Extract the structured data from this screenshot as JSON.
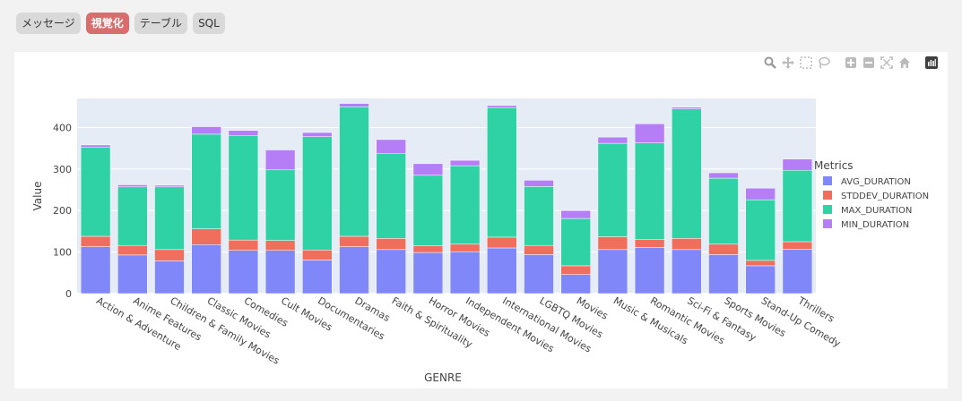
{
  "tabs": [
    {
      "label": "メッセージ",
      "active": false
    },
    {
      "label": "視覚化",
      "active": true
    },
    {
      "label": "テーブル",
      "active": false
    },
    {
      "label": "SQL",
      "active": false
    }
  ],
  "modebar": [
    "zoom-icon",
    "pan-icon",
    "box-select-icon",
    "lasso-icon",
    "zoom-in-icon",
    "zoom-out-icon",
    "autoscale-icon",
    "reset-axes-icon",
    "plotly-logo-icon"
  ],
  "colors": {
    "AVG_DURATION": "#8087f8",
    "STDDEV_DURATION": "#ef6f5c",
    "MAX_DURATION": "#2fd2a4",
    "MIN_DURATION": "#b57ef7"
  },
  "chart_data": {
    "type": "bar",
    "stacked": true,
    "xlabel": "GENRE",
    "ylabel": "Value",
    "ylim": [
      0,
      470
    ],
    "yticks": [
      0,
      100,
      200,
      300,
      400
    ],
    "legend_title": "Metrics",
    "legend_position": "right",
    "categories": [
      "Action & Adventure",
      "Anime Features",
      "Children & Family Movies",
      "Classic Movies",
      "Comedies",
      "Cult Movies",
      "Documentaries",
      "Dramas",
      "Faith & Spirituality",
      "Horror Movies",
      "Independent Movies",
      "International Movies",
      "LGBTQ Movies",
      "Movies",
      "Music & Musicals",
      "Romantic Movies",
      "Sci-Fi & Fantasy",
      "Sports Movies",
      "Stand-Up Comedy",
      "Thrillers"
    ],
    "series": [
      {
        "name": "AVG_DURATION",
        "values": [
          113,
          93,
          79,
          118,
          104,
          104,
          81,
          113,
          106,
          99,
          101,
          110,
          94,
          46,
          106,
          111,
          106,
          94,
          67,
          107
        ]
      },
      {
        "name": "STDDEV_DURATION",
        "values": [
          25,
          23,
          27,
          38,
          25,
          24,
          24,
          25,
          27,
          16,
          18,
          26,
          22,
          21,
          31,
          19,
          27,
          25,
          13,
          18
        ]
      },
      {
        "name": "MAX_DURATION",
        "values": [
          215,
          141,
          151,
          228,
          251,
          170,
          273,
          312,
          205,
          170,
          189,
          312,
          142,
          114,
          225,
          233,
          312,
          159,
          146,
          172
        ]
      },
      {
        "name": "MIN_DURATION",
        "values": [
          5,
          5,
          4,
          18,
          13,
          48,
          10,
          8,
          33,
          28,
          13,
          5,
          15,
          19,
          15,
          46,
          4,
          13,
          28,
          27
        ]
      }
    ]
  }
}
